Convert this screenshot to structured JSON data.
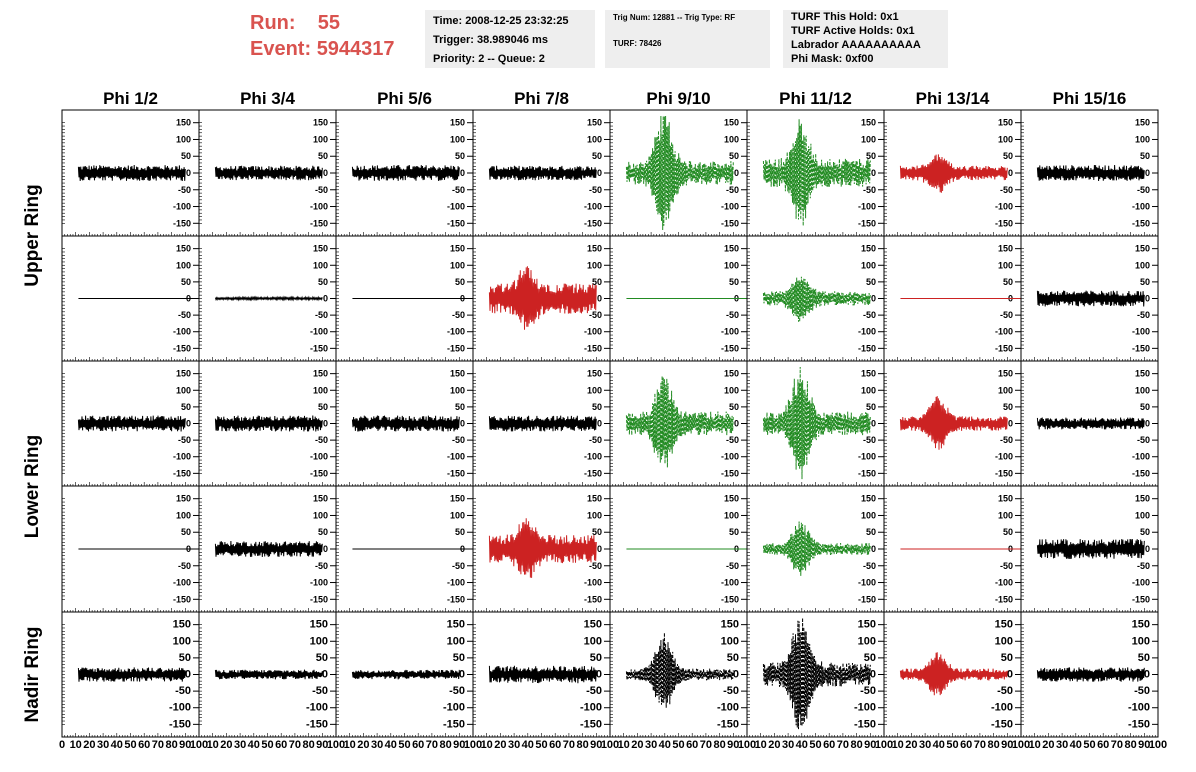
{
  "header": {
    "run_label": "Run:",
    "run_value": "55",
    "event_label": "Event:",
    "event_value": "5944317",
    "time": "Time: 2008-12-25 23:32:25",
    "trigger": "Trigger: 38.989046 ms",
    "priority": "Priority: 2 -- Queue: 2",
    "trig_num": "Trig Num: 12881 -- Trig Type: RF",
    "turf": "TURF: 78426",
    "turf_hold": "TURF This Hold: 0x1",
    "turf_active": "TURF Active Holds: 0x1",
    "labrador": "Labrador AAAAAAAAAA",
    "phi_mask": "Phi Mask: 0xf00"
  },
  "colors": {
    "normal": "#000000",
    "masked": "#cc2222",
    "triggered": "#228b22",
    "nadir_dashed": "#000000",
    "run_text": "#d9534f"
  },
  "chart_data": {
    "type": "line",
    "columns": [
      "Phi 1/2",
      "Phi 3/4",
      "Phi 5/6",
      "Phi 7/8",
      "Phi 9/10",
      "Phi 11/12",
      "Phi 13/14",
      "Phi 15/16"
    ],
    "rows": [
      "Upper Ring",
      "Lower Ring",
      "Nadir Ring"
    ],
    "xlim": [
      0,
      100
    ],
    "ylim": [
      -170,
      170
    ],
    "x_ticks": [
      0,
      10,
      20,
      30,
      40,
      50,
      60,
      70,
      80,
      90,
      100
    ],
    "y_ticks": [
      -150,
      -100,
      -50,
      0,
      50,
      100,
      150
    ],
    "panels": [
      [
        {
          "style": "normal",
          "amp": 20,
          "burst": 0
        },
        {
          "style": "normal",
          "amp": 18,
          "burst": 0
        },
        {
          "style": "normal",
          "amp": 20,
          "burst": 0
        },
        {
          "style": "normal",
          "amp": 18,
          "burst": 0
        },
        {
          "style": "triggered",
          "amp": 30,
          "burst": 165
        },
        {
          "style": "triggered",
          "amp": 35,
          "burst": 130
        },
        {
          "style": "masked",
          "amp": 18,
          "burst": 45
        },
        {
          "style": "normal",
          "amp": 20,
          "burst": 0
        }
      ],
      [
        {
          "style": "flat",
          "amp": 0,
          "burst": 0
        },
        {
          "style": "normal",
          "amp": 3,
          "burst": 0
        },
        {
          "style": "flat",
          "amp": 0,
          "burst": 0
        },
        {
          "style": "masked",
          "amp": 38,
          "burst": 60
        },
        {
          "style": "triggered-flat",
          "amp": 0,
          "burst": 0
        },
        {
          "style": "triggered",
          "amp": 18,
          "burst": 60
        },
        {
          "style": "masked-flat",
          "amp": 0,
          "burst": 0
        },
        {
          "style": "normal",
          "amp": 20,
          "burst": 0
        }
      ],
      [
        {
          "style": "normal",
          "amp": 20,
          "burst": 0
        },
        {
          "style": "normal",
          "amp": 20,
          "burst": 0
        },
        {
          "style": "normal",
          "amp": 20,
          "burst": 0
        },
        {
          "style": "normal",
          "amp": 20,
          "burst": 0
        },
        {
          "style": "triggered",
          "amp": 30,
          "burst": 120
        },
        {
          "style": "triggered",
          "amp": 30,
          "burst": 150
        },
        {
          "style": "masked",
          "amp": 18,
          "burst": 70
        },
        {
          "style": "normal",
          "amp": 15,
          "burst": 0
        }
      ],
      [
        {
          "style": "flat",
          "amp": 0,
          "burst": 0
        },
        {
          "style": "normal",
          "amp": 20,
          "burst": 0
        },
        {
          "style": "flat",
          "amp": 0,
          "burst": 0
        },
        {
          "style": "masked",
          "amp": 35,
          "burst": 60
        },
        {
          "style": "triggered-flat",
          "amp": 0,
          "burst": 0
        },
        {
          "style": "triggered",
          "amp": 15,
          "burst": 70
        },
        {
          "style": "masked-flat",
          "amp": 0,
          "burst": 0
        },
        {
          "style": "normal",
          "amp": 25,
          "burst": 0
        }
      ],
      [
        {
          "style": "normal",
          "amp": 18,
          "burst": 0
        },
        {
          "style": "normal",
          "amp": 12,
          "burst": 0
        },
        {
          "style": "normal",
          "amp": 12,
          "burst": 0
        },
        {
          "style": "normal",
          "amp": 22,
          "burst": 0
        },
        {
          "style": "dashed",
          "amp": 15,
          "burst": 110
        },
        {
          "style": "dashed",
          "amp": 30,
          "burst": 165
        },
        {
          "style": "masked",
          "amp": 15,
          "burst": 55
        },
        {
          "style": "normal",
          "amp": 18,
          "burst": 0
        }
      ]
    ]
  }
}
